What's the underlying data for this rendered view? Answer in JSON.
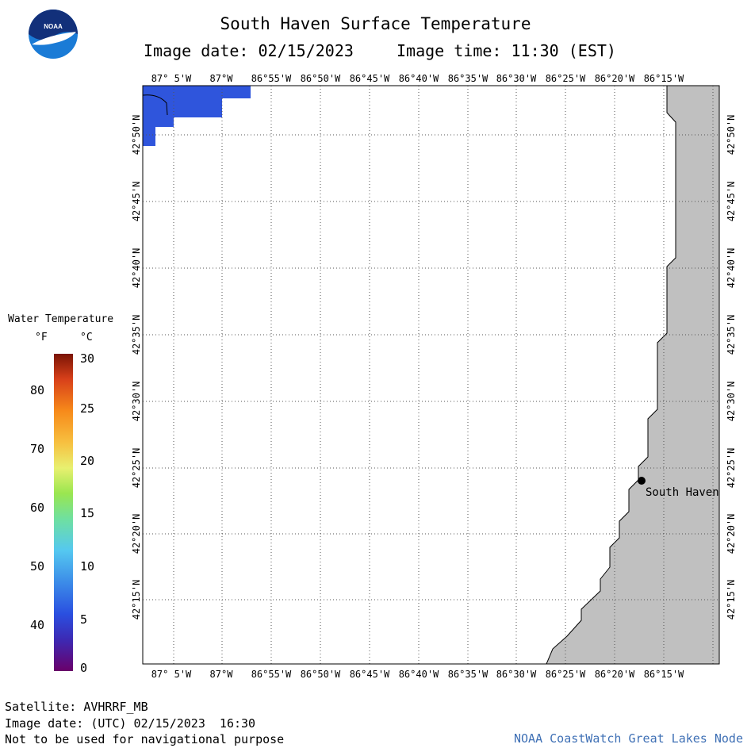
{
  "title": "South Haven Surface Temperature",
  "image_date_label": "Image date: 02/15/2023",
  "image_time_label": "Image time: 11:30 (EST)",
  "logo_text": "NOAA",
  "legend": {
    "title": "Water Temperature",
    "unit_f": "°F",
    "unit_c": "°C",
    "fahrenheit_ticks": [
      "80",
      "70",
      "60",
      "50",
      "40"
    ],
    "celsius_ticks": [
      "30",
      "25",
      "20",
      "15",
      "10",
      "5",
      "0"
    ]
  },
  "map": {
    "lon_labels": [
      "87° 5'W",
      "87°W",
      "86°55'W",
      "86°50'W",
      "86°45'W",
      "86°40'W",
      "86°35'W",
      "86°30'W",
      "86°25'W",
      "86°20'W",
      "86°15'W"
    ],
    "lat_labels": [
      "42°50'N",
      "42°45'N",
      "42°40'N",
      "42°35'N",
      "42°30'N",
      "42°25'N",
      "42°20'N",
      "42°15'N"
    ],
    "city_label": "South Haven",
    "colors": {
      "land": "#c0c0c0",
      "cold_water": "#2f55dc",
      "grid": "#555555"
    }
  },
  "footer": {
    "satellite": "Satellite: AVHRRF_MB",
    "utc_date": "Image date: (UTC) 02/15/2023  16:30",
    "disclaimer": "Not to be used for navigational purpose",
    "credit": "NOAA CoastWatch Great Lakes Node"
  }
}
